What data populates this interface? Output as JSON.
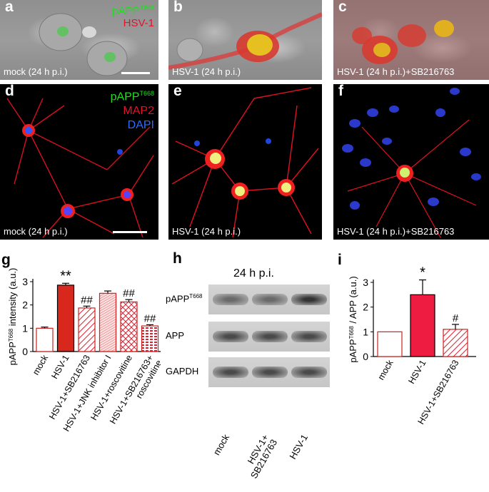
{
  "panels": {
    "a": {
      "letter": "a",
      "condition": "mock (24 h p.i.)",
      "legend": {
        "stain1": "pAPP",
        "stain1_sup": "T668",
        "stain2": "HSV-1"
      }
    },
    "b": {
      "letter": "b",
      "condition": "HSV-1 (24 h p.i.)"
    },
    "c": {
      "letter": "c",
      "condition": "HSV-1 (24 h p.i.)+SB216763"
    },
    "d": {
      "letter": "d",
      "condition": "mock (24 h p.i.)",
      "legend": {
        "stain1": "pAPP",
        "stain1_sup": "T668",
        "stain2": "MAP2",
        "stain3": "DAPI"
      }
    },
    "e": {
      "letter": "e",
      "condition": "HSV-1 (24 h p.i.)"
    },
    "f": {
      "letter": "f",
      "condition": "HSV-1 (24 h p.i.)+SB216763"
    }
  },
  "colors": {
    "green": "#22dd22",
    "red": "#e8102a",
    "blue": "#2b6cff",
    "bar_red": "#d8281e",
    "bar_pink": "#ee1c40"
  },
  "chart_data": [
    {
      "panel": "g",
      "type": "bar",
      "ylabel": "pAPP",
      "ylabel_sup": "T668",
      "ylabel_tail": " intensity (a.u.)",
      "ylim": [
        0,
        3
      ],
      "yticks": [
        "0",
        "1",
        "2",
        "3"
      ],
      "categories": [
        "mock",
        "HSV-1",
        "HSV-1+SB216763",
        "HSV-1+JNK inhibitor I",
        "HSV-1+roscovitine",
        "HSV-1+SB216763+\nroscovitine"
      ],
      "values": [
        1.0,
        2.85,
        1.87,
        2.5,
        2.13,
        1.1
      ],
      "errors": [
        0.05,
        0.08,
        0.08,
        0.1,
        0.1,
        0.05
      ],
      "significance": [
        "",
        "**",
        "##",
        "",
        "##",
        "##"
      ]
    },
    {
      "panel": "i",
      "type": "bar",
      "ylabel": "pAPP",
      "ylabel_sup": "T668",
      "ylabel_tail": " / APP (a.u.)",
      "ylim": [
        0,
        3
      ],
      "yticks": [
        "0",
        "1",
        "2",
        "3"
      ],
      "categories": [
        "mock",
        "HSV-1",
        "HSV-1+SB216763"
      ],
      "values": [
        1.0,
        2.5,
        1.1
      ],
      "errors": [
        0,
        0.6,
        0.2
      ],
      "significance": [
        "",
        "*",
        "#"
      ]
    }
  ],
  "blot": {
    "letter": "h",
    "title": "24 h p.i.",
    "rows": [
      {
        "label": "pAPP",
        "sup": "T668"
      },
      {
        "label": "APP",
        "sup": ""
      },
      {
        "label": "GAPDH",
        "sup": ""
      }
    ],
    "lanes": [
      "mock",
      "HSV-1+\nSB216763",
      "HSV-1"
    ]
  },
  "letters": {
    "g": "g",
    "i": "i"
  }
}
